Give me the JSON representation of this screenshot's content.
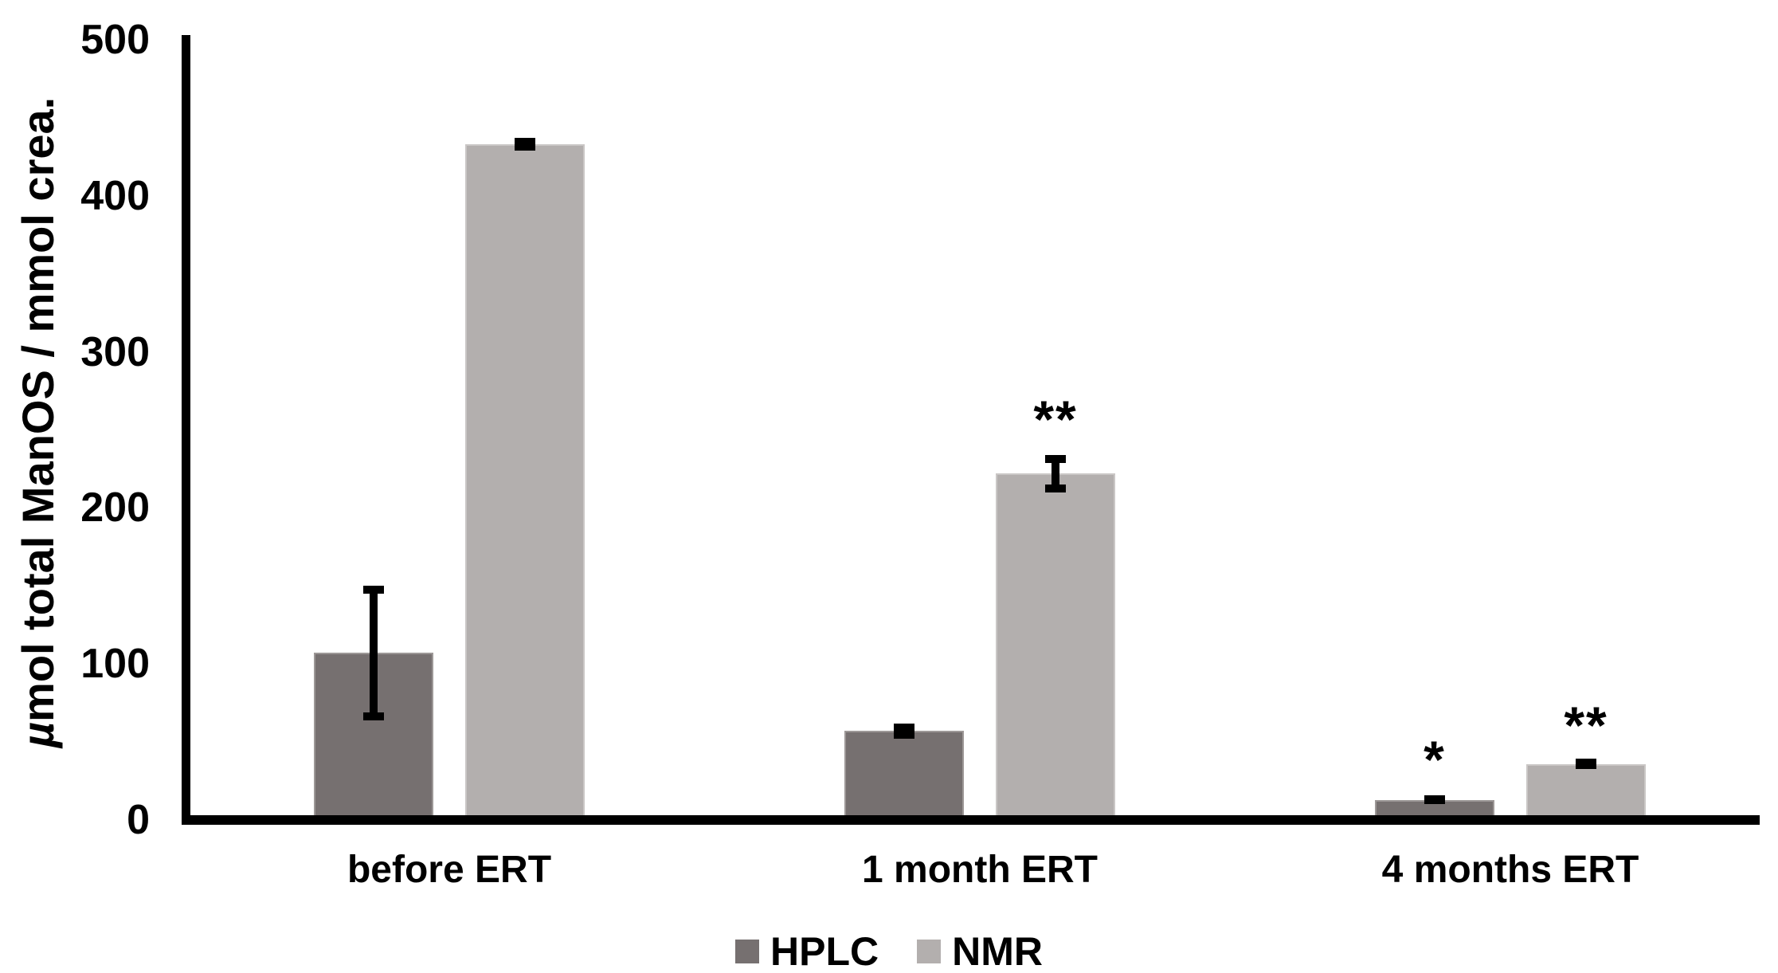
{
  "chart_data": {
    "type": "bar",
    "title": "",
    "categories": [
      "before ERT",
      "1 month ERT",
      "4 months ERT"
    ],
    "series": [
      {
        "name": "HPLC",
        "color": "#767070",
        "border_color": "#9d9897",
        "values": [
          107,
          57,
          13
        ],
        "error_bars": [
          43,
          5,
          3
        ],
        "annotations": [
          "",
          "",
          "*"
        ]
      },
      {
        "name": "NMR",
        "color": "#b3afae",
        "border_color": "#cac7c6",
        "values": [
          433,
          222,
          36
        ],
        "error_bars": [
          4,
          12,
          2
        ],
        "annotations": [
          "",
          "**",
          "**"
        ]
      }
    ],
    "xlabel": "",
    "ylabel": "µmol total ManOS / mmol crea.",
    "ylabel_italic_prefix": "µ",
    "ylabel_rest": "mol total ManOS / mmol crea.",
    "ylim": [
      0,
      500
    ],
    "yticks": [
      0,
      100,
      200,
      300,
      400,
      500
    ],
    "grid": false,
    "legend_position": "bottom",
    "axis_color": "#000000",
    "text_color": "#000000",
    "background": "#ffffff"
  },
  "legend": {
    "items": [
      {
        "label": "HPLC",
        "color": "#767070"
      },
      {
        "label": "NMR",
        "color": "#b3afae"
      }
    ]
  }
}
